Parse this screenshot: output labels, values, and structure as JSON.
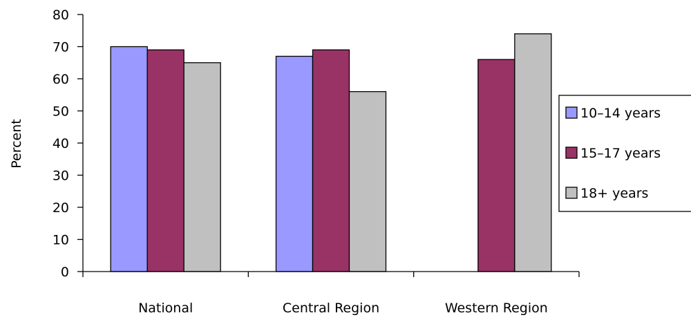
{
  "chart_data": {
    "type": "bar",
    "title": "",
    "xlabel": "",
    "ylabel": "Percent",
    "ylim": [
      0,
      80
    ],
    "yticks": [
      0,
      10,
      20,
      30,
      40,
      50,
      60,
      70,
      80
    ],
    "grid": false,
    "legend_position": "right",
    "categories": [
      "National",
      "Central Region",
      "Western Region"
    ],
    "series": [
      {
        "name": "10–14 years",
        "color": "#9999FF",
        "values": [
          70,
          67,
          null
        ]
      },
      {
        "name": "15–17 years",
        "color": "#993366",
        "values": [
          69,
          69,
          66
        ]
      },
      {
        "name": "18+ years",
        "color": "#C0C0C0",
        "values": [
          65,
          56,
          74
        ]
      }
    ]
  }
}
